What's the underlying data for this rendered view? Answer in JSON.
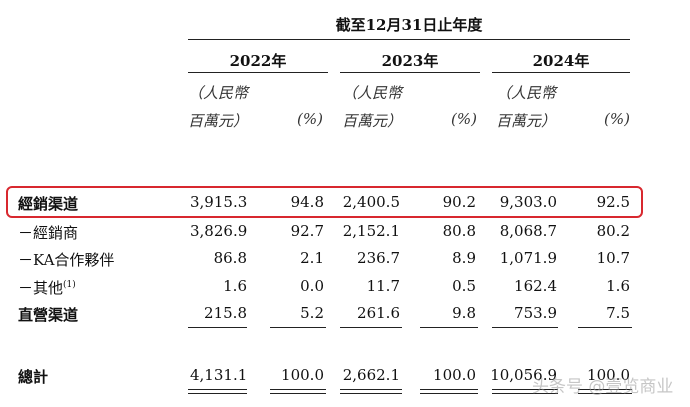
{
  "header": {
    "period": "截至12月31日止年度",
    "years": [
      "2022年",
      "2023年",
      "2024年"
    ],
    "unit_line1": "（人民幣",
    "unit_line2": "百萬元）",
    "pct_label": "(%)"
  },
  "rows": [
    {
      "label": "經銷渠道",
      "bold": true,
      "values": [
        "3,915.3",
        "94.8",
        "2,400.5",
        "90.2",
        "9,303.0",
        "92.5"
      ]
    },
    {
      "label": "－經銷商",
      "bold": false,
      "values": [
        "3,826.9",
        "92.7",
        "2,152.1",
        "80.8",
        "8,068.7",
        "80.2"
      ]
    },
    {
      "label": "－KA合作夥伴",
      "bold": false,
      "values": [
        "86.8",
        "2.1",
        "236.7",
        "8.9",
        "1,071.9",
        "10.7"
      ]
    },
    {
      "label": "－其他",
      "sup": "(1)",
      "bold": false,
      "values": [
        "1.6",
        "0.0",
        "11.7",
        "0.5",
        "162.4",
        "1.6"
      ]
    },
    {
      "label": "直營渠道",
      "bold": true,
      "values": [
        "215.8",
        "5.2",
        "261.6",
        "9.8",
        "753.9",
        "7.5"
      ]
    }
  ],
  "total": {
    "label": "總計",
    "values": [
      "4,131.1",
      "100.0",
      "2,662.1",
      "100.0",
      "10,056.9",
      "100.0"
    ]
  },
  "highlight_color": "#d8282f",
  "watermark": "头条号 @壹览商业"
}
